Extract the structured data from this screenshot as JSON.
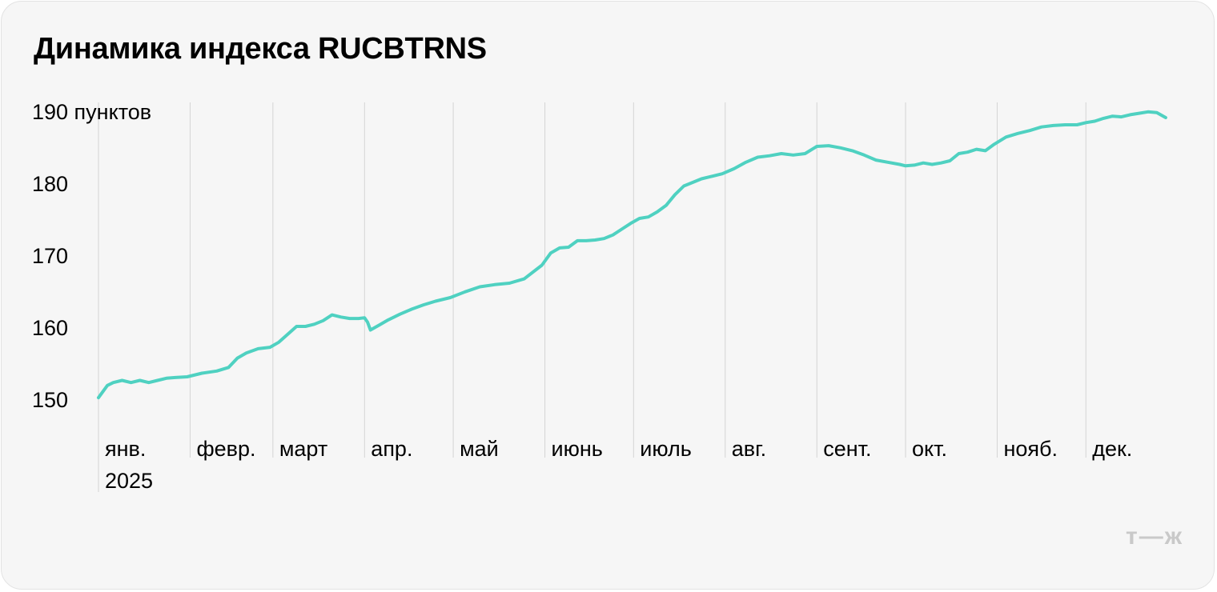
{
  "title": "Динамика индекса RUCBTRNS",
  "watermark": "т—ж",
  "chart_data": {
    "type": "line",
    "title": "Динамика индекса RUCBTRNS",
    "xlabel": "",
    "ylabel": "",
    "ylim": [
      150,
      190
    ],
    "yticks": [
      {
        "value": 190,
        "label": "190 пунктов"
      },
      {
        "value": 180,
        "label": "180"
      },
      {
        "value": 170,
        "label": "170"
      },
      {
        "value": 160,
        "label": "160"
      },
      {
        "value": 150,
        "label": "150"
      }
    ],
    "xticks": [
      "янв.",
      "февр.",
      "март",
      "апр.",
      "май",
      "июнь",
      "июль",
      "авг.",
      "сент.",
      "окт.",
      "нояб.",
      "дек."
    ],
    "year_label": "2025",
    "grid": "vertical lines at month starts",
    "line_color": "#4fd1c1",
    "series": [
      {
        "x": [
          "2025-01-01",
          "2025-01-04",
          "2025-01-06",
          "2025-01-09",
          "2025-01-12",
          "2025-01-15",
          "2025-01-18",
          "2025-01-21",
          "2025-01-24",
          "2025-01-27",
          "2025-01-31",
          "2025-02-05",
          "2025-02-10",
          "2025-02-14",
          "2025-02-17",
          "2025-02-20",
          "2025-02-24",
          "2025-02-28",
          "2025-03-03",
          "2025-03-06",
          "2025-03-09",
          "2025-03-12",
          "2025-03-15",
          "2025-03-18",
          "2025-03-21",
          "2025-03-24",
          "2025-03-27",
          "2025-03-30",
          "2025-04-01",
          "2025-04-02",
          "2025-04-03",
          "2025-04-06",
          "2025-04-09",
          "2025-04-13",
          "2025-04-17",
          "2025-04-21",
          "2025-04-25",
          "2025-04-30",
          "2025-05-05",
          "2025-05-10",
          "2025-05-15",
          "2025-05-20",
          "2025-05-25",
          "2025-05-31",
          "2025-06-03",
          "2025-06-06",
          "2025-06-09",
          "2025-06-12",
          "2025-06-15",
          "2025-06-18",
          "2025-06-21",
          "2025-06-24",
          "2025-06-27",
          "2025-06-30",
          "2025-07-03",
          "2025-07-06",
          "2025-07-09",
          "2025-07-12",
          "2025-07-15",
          "2025-07-18",
          "2025-07-21",
          "2025-07-24",
          "2025-07-27",
          "2025-07-31",
          "2025-08-04",
          "2025-08-08",
          "2025-08-12",
          "2025-08-16",
          "2025-08-20",
          "2025-08-24",
          "2025-08-28",
          "2025-09-01",
          "2025-09-05",
          "2025-09-09",
          "2025-09-13",
          "2025-09-17",
          "2025-09-21",
          "2025-09-25",
          "2025-09-29",
          "2025-10-01",
          "2025-10-04",
          "2025-10-07",
          "2025-10-10",
          "2025-10-13",
          "2025-10-16",
          "2025-10-19",
          "2025-10-22",
          "2025-10-25",
          "2025-10-28",
          "2025-10-31",
          "2025-11-04",
          "2025-11-08",
          "2025-11-12",
          "2025-11-16",
          "2025-11-20",
          "2025-11-24",
          "2025-11-28",
          "2025-12-01",
          "2025-12-04",
          "2025-12-07",
          "2025-12-10",
          "2025-12-13",
          "2025-12-16",
          "2025-12-19",
          "2025-12-22",
          "2025-12-25",
          "2025-12-28"
        ],
        "y": [
          150.1,
          151.8,
          152.2,
          152.5,
          152.2,
          152.5,
          152.2,
          152.5,
          152.8,
          152.9,
          153.0,
          153.5,
          153.8,
          154.3,
          155.6,
          156.3,
          156.9,
          157.1,
          157.8,
          158.9,
          160.0,
          160.0,
          160.3,
          160.8,
          161.6,
          161.3,
          161.1,
          161.1,
          161.2,
          160.6,
          159.5,
          160.2,
          160.9,
          161.7,
          162.4,
          163.0,
          163.5,
          164.0,
          164.8,
          165.5,
          165.8,
          166.0,
          166.6,
          168.5,
          170.2,
          170.9,
          171.0,
          171.9,
          171.9,
          172.0,
          172.2,
          172.7,
          173.5,
          174.3,
          175.0,
          175.2,
          175.9,
          176.8,
          178.3,
          179.5,
          180.0,
          180.5,
          180.8,
          181.2,
          181.9,
          182.8,
          183.5,
          183.7,
          184.0,
          183.8,
          184.0,
          185.0,
          185.1,
          184.8,
          184.4,
          183.8,
          183.1,
          182.8,
          182.5,
          182.3,
          182.4,
          182.7,
          182.5,
          182.7,
          183.0,
          184.0,
          184.2,
          184.6,
          184.4,
          185.3,
          186.3,
          186.8,
          187.2,
          187.7,
          187.9,
          188.0,
          188.0,
          188.3,
          188.5,
          188.9,
          189.2,
          189.1,
          189.4,
          189.6,
          189.8,
          189.7,
          189.0
        ]
      }
    ]
  }
}
